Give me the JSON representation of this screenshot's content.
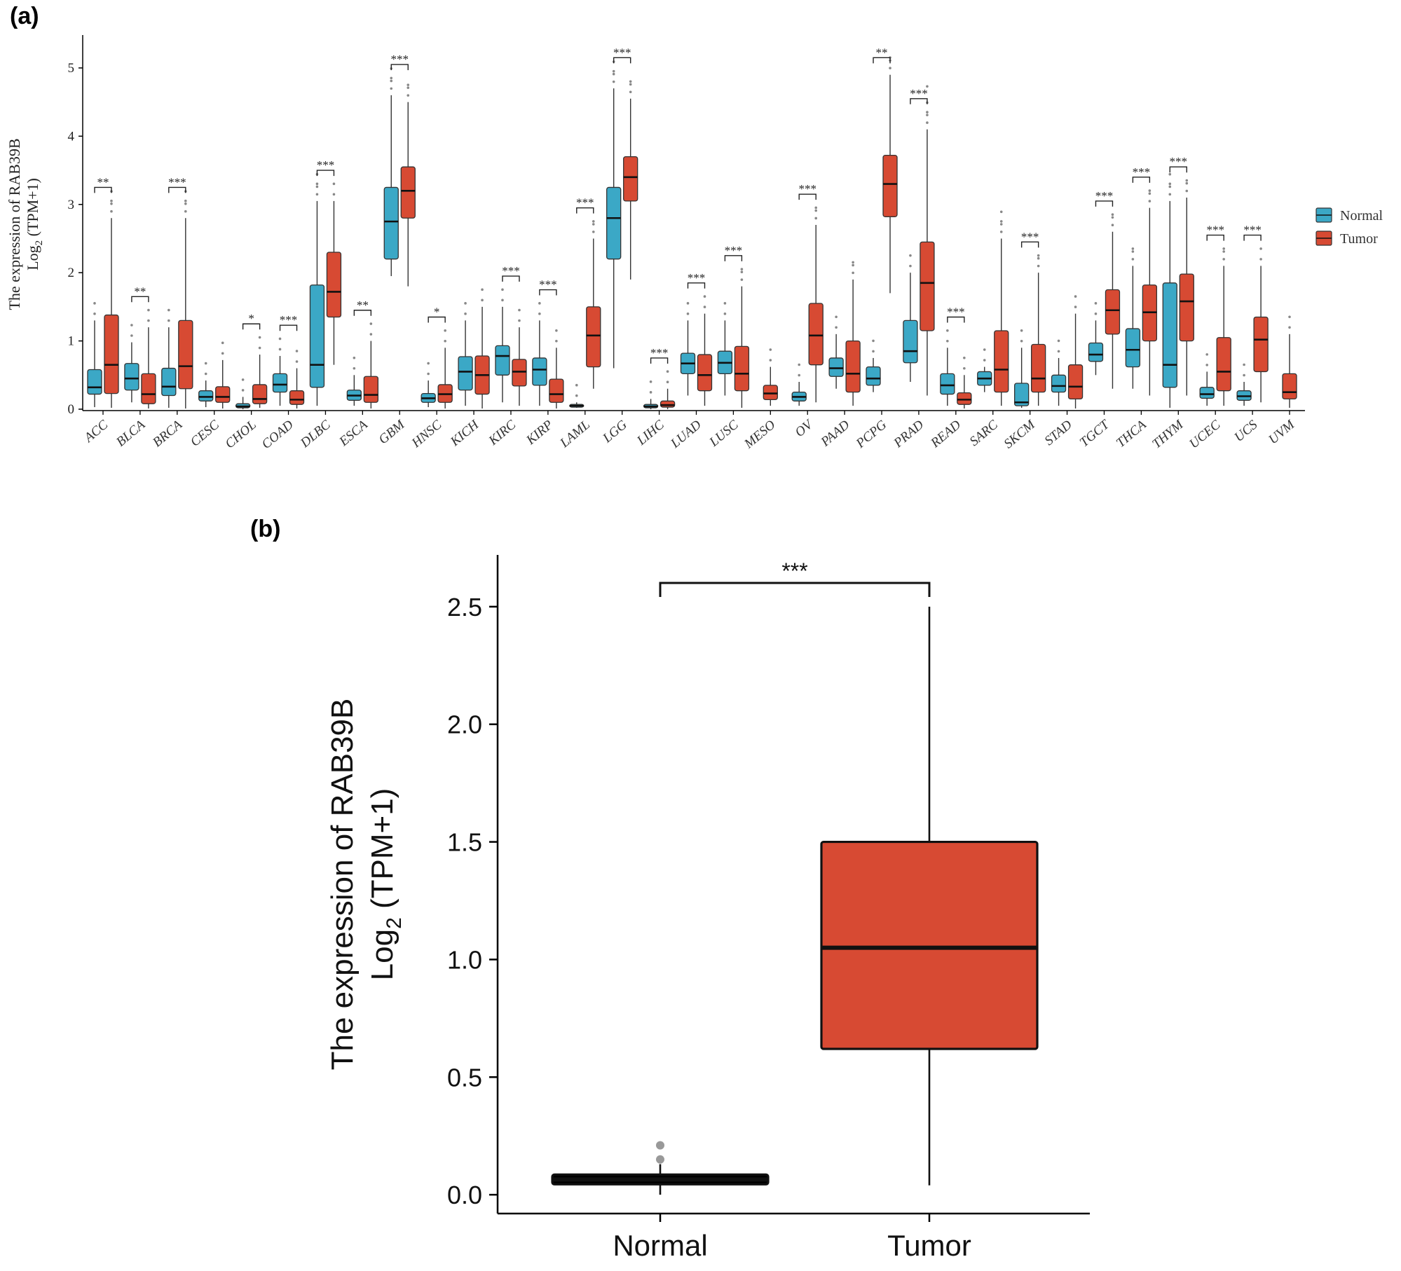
{
  "panel_a_label": "(a)",
  "panel_b_label": "(b)",
  "chart_data": [
    {
      "type": "box",
      "panel": "(a)",
      "ylabel_line1": "The expression of RAB39B",
      "ylabel_line2_base": "Log",
      "ylabel_line2_sub": "2",
      "ylabel_line2_rest": " (TPM+1)",
      "ylim": [
        0,
        5.4
      ],
      "yticks": [
        0,
        1,
        2,
        3,
        4,
        5
      ],
      "legend": {
        "position": "right",
        "entries": [
          {
            "name": "Normal",
            "color": "#3ba8c6"
          },
          {
            "name": "Tumor",
            "color": "#d74a33"
          }
        ]
      },
      "colors": {
        "Normal": "#3ba8c6",
        "Tumor": "#d74a33"
      },
      "categories": [
        "ACC",
        "BLCA",
        "BRCA",
        "CESC",
        "CHOL",
        "COAD",
        "DLBC",
        "ESCA",
        "GBM",
        "HNSC",
        "KICH",
        "KIRC",
        "KIRP",
        "LAML",
        "LGG",
        "LIHC",
        "LUAD",
        "LUSC",
        "MESO",
        "OV",
        "PAAD",
        "PCPG",
        "PRAD",
        "READ",
        "SARC",
        "SKCM",
        "STAD",
        "TGCT",
        "THCA",
        "THYM",
        "UCEC",
        "UCS",
        "UVM"
      ],
      "groups": [
        {
          "category": "ACC",
          "sig": "**",
          "normal": [
            0.03,
            0.22,
            0.32,
            0.58,
            1.3
          ],
          "tumor": [
            0.02,
            0.23,
            0.65,
            1.38,
            2.8
          ]
        },
        {
          "category": "BLCA",
          "sig": "**",
          "normal": [
            0.1,
            0.28,
            0.45,
            0.67,
            0.98
          ],
          "tumor": [
            0.01,
            0.08,
            0.22,
            0.52,
            1.2
          ]
        },
        {
          "category": "BRCA",
          "sig": "***",
          "normal": [
            0.02,
            0.2,
            0.33,
            0.6,
            1.2
          ],
          "tumor": [
            0.01,
            0.3,
            0.63,
            1.3,
            2.8
          ]
        },
        {
          "category": "CESC",
          "sig": "",
          "normal": [
            0.03,
            0.12,
            0.18,
            0.27,
            0.42
          ],
          "tumor": [
            0.01,
            0.1,
            0.18,
            0.33,
            0.72
          ]
        },
        {
          "category": "CHOL",
          "sig": "*",
          "normal": [
            0.0,
            0.02,
            0.04,
            0.08,
            0.18
          ],
          "tumor": [
            0.02,
            0.08,
            0.15,
            0.36,
            0.8
          ]
        },
        {
          "category": "COAD",
          "sig": "***",
          "normal": [
            0.05,
            0.25,
            0.36,
            0.52,
            0.78
          ],
          "tumor": [
            0.01,
            0.07,
            0.14,
            0.27,
            0.6
          ]
        },
        {
          "category": "DLBC",
          "sig": "***",
          "normal": [
            0.05,
            0.32,
            0.65,
            1.82,
            3.05
          ],
          "tumor": [
            0.65,
            1.35,
            1.72,
            2.3,
            3.05
          ]
        },
        {
          "category": "ESCA",
          "sig": "**",
          "normal": [
            0.05,
            0.13,
            0.2,
            0.28,
            0.5
          ],
          "tumor": [
            0.01,
            0.1,
            0.21,
            0.48,
            1.0
          ]
        },
        {
          "category": "GBM",
          "sig": "***",
          "normal": [
            1.95,
            2.2,
            2.75,
            3.25,
            4.6
          ],
          "tumor": [
            1.8,
            2.8,
            3.2,
            3.55,
            4.5
          ]
        },
        {
          "category": "HNSC",
          "sig": "*",
          "normal": [
            0.03,
            0.1,
            0.16,
            0.23,
            0.42
          ],
          "tumor": [
            0.01,
            0.1,
            0.22,
            0.36,
            0.9
          ]
        },
        {
          "category": "KICH",
          "sig": "",
          "normal": [
            0.05,
            0.28,
            0.55,
            0.77,
            1.3
          ],
          "tumor": [
            0.01,
            0.22,
            0.5,
            0.78,
            1.5
          ]
        },
        {
          "category": "KIRC",
          "sig": "***",
          "normal": [
            0.1,
            0.5,
            0.78,
            0.93,
            1.5
          ],
          "tumor": [
            0.05,
            0.34,
            0.55,
            0.73,
            1.2
          ]
        },
        {
          "category": "KIRP",
          "sig": "***",
          "normal": [
            0.05,
            0.35,
            0.58,
            0.75,
            1.3
          ],
          "tumor": [
            0.01,
            0.1,
            0.22,
            0.44,
            0.9
          ]
        },
        {
          "category": "LAML",
          "sig": "***",
          "normal": [
            0.02,
            0.03,
            0.05,
            0.07,
            0.1
          ],
          "tumor": [
            0.3,
            0.62,
            1.08,
            1.5,
            2.5
          ]
        },
        {
          "category": "LGG",
          "sig": "***",
          "normal": [
            0.6,
            2.2,
            2.8,
            3.25,
            4.7
          ],
          "tumor": [
            1.9,
            3.05,
            3.4,
            3.7,
            4.55
          ]
        },
        {
          "category": "LIHC",
          "sig": "***",
          "normal": [
            0.0,
            0.02,
            0.04,
            0.07,
            0.15
          ],
          "tumor": [
            0.0,
            0.03,
            0.06,
            0.12,
            0.3
          ]
        },
        {
          "category": "LUAD",
          "sig": "***",
          "normal": [
            0.2,
            0.52,
            0.67,
            0.82,
            1.3
          ],
          "tumor": [
            0.05,
            0.27,
            0.5,
            0.8,
            1.4
          ]
        },
        {
          "category": "LUSC",
          "sig": "***",
          "normal": [
            0.2,
            0.52,
            0.68,
            0.85,
            1.3
          ],
          "tumor": [
            0.02,
            0.27,
            0.52,
            0.92,
            1.8
          ]
        },
        {
          "category": "MESO",
          "sig": "",
          "normal": null,
          "tumor": [
            0.05,
            0.14,
            0.23,
            0.35,
            0.62
          ]
        },
        {
          "category": "OV",
          "sig": "***",
          "normal": [
            0.05,
            0.12,
            0.18,
            0.25,
            0.4
          ],
          "tumor": [
            0.1,
            0.65,
            1.08,
            1.55,
            2.7
          ]
        },
        {
          "category": "PAAD",
          "sig": "",
          "normal": [
            0.3,
            0.48,
            0.6,
            0.75,
            1.1
          ],
          "tumor": [
            0.05,
            0.25,
            0.52,
            1.0,
            1.9
          ]
        },
        {
          "category": "PCPG",
          "sig": "**",
          "normal": [
            0.25,
            0.35,
            0.45,
            0.62,
            0.75
          ],
          "tumor": [
            1.7,
            2.82,
            3.3,
            3.72,
            4.9
          ]
        },
        {
          "category": "PRAD",
          "sig": "***",
          "normal": [
            0.4,
            0.68,
            0.85,
            1.3,
            2.0
          ],
          "tumor": [
            0.2,
            1.15,
            1.85,
            2.45,
            4.1
          ]
        },
        {
          "category": "READ",
          "sig": "***",
          "normal": [
            0.05,
            0.22,
            0.35,
            0.52,
            0.9
          ],
          "tumor": [
            0.01,
            0.07,
            0.14,
            0.24,
            0.5
          ]
        },
        {
          "category": "SARC",
          "sig": "",
          "normal": [
            0.25,
            0.35,
            0.45,
            0.55,
            0.62
          ],
          "tumor": [
            0.05,
            0.25,
            0.58,
            1.15,
            2.5
          ]
        },
        {
          "category": "SKCM",
          "sig": "***",
          "normal": [
            0.02,
            0.05,
            0.1,
            0.38,
            0.9
          ],
          "tumor": [
            0.05,
            0.25,
            0.45,
            0.95,
            2.0
          ]
        },
        {
          "category": "STAD",
          "sig": "",
          "normal": [
            0.05,
            0.25,
            0.34,
            0.5,
            0.75
          ],
          "tumor": [
            0.01,
            0.15,
            0.33,
            0.65,
            1.4
          ]
        },
        {
          "category": "TGCT",
          "sig": "***",
          "normal": [
            0.5,
            0.7,
            0.8,
            0.97,
            1.3
          ],
          "tumor": [
            0.3,
            1.1,
            1.45,
            1.75,
            2.6
          ]
        },
        {
          "category": "THCA",
          "sig": "***",
          "normal": [
            0.3,
            0.62,
            0.87,
            1.18,
            2.1
          ],
          "tumor": [
            0.2,
            1.0,
            1.42,
            1.82,
            2.95
          ]
        },
        {
          "category": "THYM",
          "sig": "***",
          "normal": [
            0.02,
            0.32,
            0.65,
            1.85,
            3.05
          ],
          "tumor": [
            0.2,
            1.0,
            1.58,
            1.98,
            3.1
          ]
        },
        {
          "category": "UCEC",
          "sig": "***",
          "normal": [
            0.05,
            0.16,
            0.22,
            0.32,
            0.55
          ],
          "tumor": [
            0.05,
            0.27,
            0.55,
            1.05,
            2.1
          ]
        },
        {
          "category": "UCS",
          "sig": "***",
          "normal": [
            0.05,
            0.13,
            0.19,
            0.27,
            0.4
          ],
          "tumor": [
            0.1,
            0.55,
            1.02,
            1.35,
            2.1
          ]
        },
        {
          "category": "UVM",
          "sig": "",
          "normal": null,
          "tumor": [
            0.02,
            0.15,
            0.25,
            0.52,
            1.1
          ]
        }
      ]
    },
    {
      "type": "box",
      "panel": "(b)",
      "ylabel_line1": "The expression of RAB39B",
      "ylabel_line2_base": "Log",
      "ylabel_line2_sub": "2",
      "ylabel_line2_rest": " (TPM+1)",
      "ylim": [
        -0.08,
        2.72
      ],
      "yticks": [
        "0.0",
        "0.5",
        "1.0",
        "1.5",
        "2.0",
        "2.5"
      ],
      "categories": [
        "Normal",
        "Tumor"
      ],
      "significance": "***",
      "boxes": [
        {
          "name": "Normal",
          "color": "#000000",
          "min": 0.0,
          "q1": 0.05,
          "median": 0.065,
          "q3": 0.085,
          "max": 0.13,
          "outliers": [
            0.15,
            0.21
          ]
        },
        {
          "name": "Tumor",
          "color": "#d74a33",
          "min": 0.04,
          "q1": 0.62,
          "median": 1.05,
          "q3": 1.5,
          "max": 2.5,
          "outliers": []
        }
      ]
    }
  ]
}
